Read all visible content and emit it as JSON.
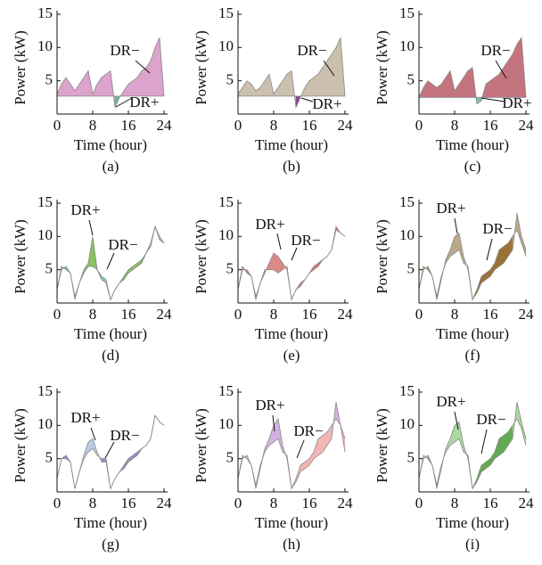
{
  "chart_data": [
    {
      "type": "area-band",
      "caption": "(a)",
      "xlabel": "Time (hour)",
      "ylabel": "Power (kW)",
      "annotations": [
        "DR−",
        "DR+"
      ],
      "x": [
        0,
        1,
        2,
        3,
        4,
        5,
        6,
        7,
        8,
        9,
        10,
        11,
        12,
        13,
        14,
        15,
        16,
        17,
        18,
        19,
        20,
        21,
        22,
        23,
        24
      ],
      "xlim": [
        0,
        24
      ],
      "xticks": [
        0,
        8,
        16,
        24
      ],
      "ylim": [
        0,
        15
      ],
      "yticks": [
        5,
        10,
        15
      ],
      "dr_plus_color": "#62b8a0",
      "dr_minus_color": "#dca3cc",
      "series": [
        {
          "color": "#8a8a8a",
          "values": [
            2.7,
            2.7,
            2.7,
            2.7,
            2.7,
            2.7,
            2.7,
            2.7,
            2.7,
            2.7,
            2.7,
            2.7,
            2.7,
            2.7,
            2.7,
            2.7,
            2.7,
            2.7,
            2.7,
            2.7,
            2.7,
            2.7,
            2.7,
            2.7,
            2.7
          ]
        },
        {
          "color": "#8a8a8a",
          "values": [
            3,
            4.5,
            5.5,
            4.5,
            3.5,
            4.5,
            5.5,
            6.5,
            3,
            4.5,
            5.5,
            6,
            6.5,
            1,
            2.5,
            3.5,
            4.5,
            5,
            5.5,
            6.5,
            7,
            8,
            10,
            11.5,
            2.7
          ]
        }
      ]
    },
    {
      "type": "area-band",
      "caption": "(b)",
      "xlabel": "Time (hour)",
      "ylabel": "Power (kW)",
      "annotations": [
        "DR−",
        "DR+"
      ],
      "x": [
        0,
        1,
        2,
        3,
        4,
        5,
        6,
        7,
        8,
        9,
        10,
        11,
        12,
        13,
        14,
        15,
        16,
        17,
        18,
        19,
        20,
        21,
        22,
        23,
        24
      ],
      "xlim": [
        0,
        24
      ],
      "xticks": [
        0,
        8,
        16,
        24
      ],
      "ylim": [
        0,
        15
      ],
      "yticks": [
        5,
        10,
        15
      ],
      "dr_plus_color": "#8b4a8c",
      "dr_minus_color": "#cbbfad",
      "series": [
        {
          "color": "#8a8a8a",
          "values": [
            2.7,
            2.7,
            2.7,
            2.7,
            2.7,
            2.7,
            2.7,
            2.7,
            2.7,
            2.7,
            2.7,
            2.7,
            2.7,
            2.7,
            2.7,
            2.7,
            2.7,
            2.7,
            2.7,
            2.7,
            2.7,
            2.7,
            2.7,
            2.7,
            2.7
          ]
        },
        {
          "color": "#8a8a8a",
          "values": [
            3,
            4,
            5,
            4.5,
            3.5,
            4,
            5,
            6,
            3,
            4,
            5,
            6,
            6.5,
            1,
            2.5,
            4,
            5,
            5.5,
            6,
            7,
            8,
            9,
            10,
            11.5,
            2.7
          ]
        }
      ]
    },
    {
      "type": "area-band",
      "caption": "(c)",
      "xlabel": "Time (hour)",
      "ylabel": "Power (kW)",
      "annotations": [
        "DR−",
        "DR+"
      ],
      "x": [
        0,
        1,
        2,
        3,
        4,
        5,
        6,
        7,
        8,
        9,
        10,
        11,
        12,
        13,
        14,
        15,
        16,
        17,
        18,
        19,
        20,
        21,
        22,
        23,
        24
      ],
      "xlim": [
        0,
        24
      ],
      "xticks": [
        0,
        8,
        16,
        24
      ],
      "ylim": [
        0,
        15
      ],
      "yticks": [
        5,
        10,
        15
      ],
      "dr_plus_color": "#7cc2b2",
      "dr_minus_color": "#c4747e",
      "series": [
        {
          "color": "#8a8a8a",
          "values": [
            2.5,
            2.5,
            2.5,
            2.5,
            2.5,
            2.5,
            2.5,
            2.5,
            2.5,
            2.5,
            2.5,
            2.5,
            2.5,
            2.5,
            2.5,
            2.5,
            2.5,
            2.5,
            2.5,
            2.5,
            2.5,
            2.5,
            2.5,
            2.5,
            2.5
          ]
        },
        {
          "color": "#8a8a8a",
          "values": [
            2.5,
            4,
            5,
            4.5,
            4,
            4.5,
            5.5,
            6.5,
            3.5,
            4.5,
            5.5,
            6.5,
            7,
            1.5,
            2,
            4.5,
            5,
            5.5,
            6,
            7,
            8,
            9,
            10.5,
            11.5,
            2.5
          ]
        }
      ]
    },
    {
      "type": "area-band",
      "caption": "(d)",
      "xlabel": "Time (hour)",
      "ylabel": "Power (kW)",
      "annotations": [
        "DR−",
        "DR+"
      ],
      "x": [
        0,
        1,
        2,
        3,
        4,
        5,
        6,
        7,
        8,
        9,
        10,
        11,
        12,
        13,
        14,
        15,
        16,
        17,
        18,
        19,
        20,
        21,
        22,
        23,
        24
      ],
      "xlim": [
        0,
        24
      ],
      "xticks": [
        0,
        8,
        16,
        24
      ],
      "ylim": [
        0,
        15
      ],
      "yticks": [
        5,
        10,
        15
      ],
      "dr_plus_color": "#82ccbb",
      "dr_minus_color": "#8cc15e",
      "series": [
        {
          "color": "#8a8a8a",
          "values": [
            2,
            5,
            5.5,
            4.5,
            1,
            3,
            4.5,
            5.5,
            5.5,
            5,
            4,
            3.5,
            0.5,
            2,
            3,
            3.5,
            4.5,
            5,
            5.5,
            6,
            7.5,
            8.5,
            11.5,
            10,
            9
          ]
        },
        {
          "color": "#8a8a8a",
          "values": [
            2,
            5.5,
            5,
            4.5,
            0.5,
            3,
            5,
            6,
            10,
            5,
            3.5,
            3,
            0.5,
            2,
            3,
            4,
            5,
            5.5,
            6,
            6.5,
            7.5,
            9,
            11.5,
            9.5,
            9
          ]
        }
      ]
    },
    {
      "type": "area-band",
      "caption": "(e)",
      "xlabel": "Time (hour)",
      "ylabel": "Power (kW)",
      "annotations": [
        "DR−",
        "DR+"
      ],
      "x": [
        0,
        1,
        2,
        3,
        4,
        5,
        6,
        7,
        8,
        9,
        10,
        11,
        12,
        13,
        14,
        15,
        16,
        17,
        18,
        19,
        20,
        21,
        22,
        23,
        24
      ],
      "xlim": [
        0,
        24
      ],
      "xticks": [
        0,
        8,
        16,
        24
      ],
      "ylim": [
        0,
        15
      ],
      "yticks": [
        5,
        10,
        15
      ],
      "dr_plus_color": "#e07272",
      "dr_minus_color": "#d98c86",
      "series": [
        {
          "color": "#8a8a8a",
          "values": [
            2,
            5,
            5,
            4,
            1,
            3,
            5,
            5,
            5,
            4.5,
            5,
            5.5,
            0.5,
            2,
            3,
            3.5,
            4.5,
            5.5,
            6,
            6.5,
            7,
            8,
            11.5,
            10.5,
            10
          ]
        },
        {
          "color": "#8a8a8a",
          "values": [
            2,
            5.5,
            4.5,
            4,
            0.5,
            3,
            4.5,
            6,
            7.5,
            7,
            6,
            5,
            0.5,
            2,
            2.5,
            3.5,
            4.5,
            5,
            5.5,
            6.5,
            7,
            8,
            11,
            10.5,
            10
          ]
        }
      ]
    },
    {
      "type": "area-band",
      "caption": "(f)",
      "xlabel": "Time (hour)",
      "ylabel": "Power (kW)",
      "annotations": [
        "DR−",
        "DR+"
      ],
      "x": [
        0,
        1,
        2,
        3,
        4,
        5,
        6,
        7,
        8,
        9,
        10,
        11,
        12,
        13,
        14,
        15,
        16,
        17,
        18,
        19,
        20,
        21,
        22,
        23,
        24
      ],
      "xlim": [
        0,
        24
      ],
      "xticks": [
        0,
        8,
        16,
        24
      ],
      "ylim": [
        0,
        15
      ],
      "yticks": [
        5,
        10,
        15
      ],
      "dr_plus_color": "#9a7238",
      "dr_minus_color": "#bba78a",
      "series": [
        {
          "color": "#8a8a8a",
          "values": [
            2,
            5,
            5.5,
            4,
            1,
            4,
            6,
            7,
            7.5,
            8,
            6,
            5.5,
            0.5,
            2,
            4,
            4.5,
            5,
            6,
            8,
            8.5,
            9,
            10,
            11,
            9,
            7
          ]
        },
        {
          "color": "#8a8a8a",
          "values": [
            2,
            5.5,
            5,
            4,
            0.5,
            3.5,
            6.5,
            8,
            10,
            10.5,
            7,
            5,
            0.5,
            1.5,
            3,
            3.5,
            4,
            5,
            5.5,
            6,
            7,
            8,
            13.5,
            10,
            8
          ]
        }
      ]
    },
    {
      "type": "area-band",
      "caption": "(g)",
      "xlabel": "Time (hour)",
      "ylabel": "Power (kW)",
      "annotations": [
        "DR−",
        "DR+"
      ],
      "x": [
        0,
        1,
        2,
        3,
        4,
        5,
        6,
        7,
        8,
        9,
        10,
        11,
        12,
        13,
        14,
        15,
        16,
        17,
        18,
        19,
        20,
        21,
        22,
        23,
        24
      ],
      "xlim": [
        0,
        24
      ],
      "xticks": [
        0,
        8,
        16,
        24
      ],
      "ylim": [
        0,
        15
      ],
      "yticks": [
        5,
        10,
        15
      ],
      "dr_plus_color": "#8c8ec8",
      "dr_minus_color": "#b9cbe2",
      "series": [
        {
          "color": "#8a8a8a",
          "values": [
            2,
            5,
            5.5,
            4.5,
            0.5,
            3,
            5,
            6,
            6.5,
            5.5,
            5,
            5,
            0.5,
            2,
            3,
            4,
            5,
            5.5,
            6,
            6.5,
            7,
            8,
            11.5,
            10.5,
            10
          ]
        },
        {
          "color": "#8a8a8a",
          "values": [
            2,
            5,
            5,
            4.5,
            0.5,
            3,
            5.5,
            7.5,
            8,
            6,
            4.5,
            4.5,
            0.5,
            2,
            3,
            3.5,
            4.5,
            5,
            5.5,
            6.5,
            7,
            8,
            11.5,
            10.5,
            10
          ]
        }
      ]
    },
    {
      "type": "area-band",
      "caption": "(h)",
      "xlabel": "Time (hour)",
      "ylabel": "Power (kW)",
      "annotations": [
        "DR−",
        "DR+"
      ],
      "x": [
        0,
        1,
        2,
        3,
        4,
        5,
        6,
        7,
        8,
        9,
        10,
        11,
        12,
        13,
        14,
        15,
        16,
        17,
        18,
        19,
        20,
        21,
        22,
        23,
        24
      ],
      "xlim": [
        0,
        24
      ],
      "xticks": [
        0,
        8,
        16,
        24
      ],
      "ylim": [
        0,
        15
      ],
      "yticks": [
        5,
        10,
        15
      ],
      "dr_plus_color": "#f2b6b4",
      "dr_minus_color": "#d2b2e0",
      "series": [
        {
          "color": "#8a8a8a",
          "values": [
            2,
            5,
            5.5,
            4,
            1,
            4,
            6,
            7,
            7.5,
            8,
            6,
            5.5,
            0.5,
            2,
            4,
            4.5,
            5,
            6,
            8,
            8.5,
            9,
            10,
            11,
            10,
            8
          ]
        },
        {
          "color": "#8a8a8a",
          "values": [
            2,
            5.5,
            5,
            4,
            0.5,
            3.5,
            6.5,
            8,
            10,
            11,
            7,
            5,
            0.5,
            1.5,
            3,
            3.5,
            4,
            5,
            5.5,
            6,
            7,
            8,
            13.5,
            10,
            6
          ]
        }
      ]
    },
    {
      "type": "area-band",
      "caption": "(i)",
      "xlabel": "Time (hour)",
      "ylabel": "Power (kW)",
      "annotations": [
        "DR−",
        "DR+"
      ],
      "x": [
        0,
        1,
        2,
        3,
        4,
        5,
        6,
        7,
        8,
        9,
        10,
        11,
        12,
        13,
        14,
        15,
        16,
        17,
        18,
        19,
        20,
        21,
        22,
        23,
        24
      ],
      "xlim": [
        0,
        24
      ],
      "xticks": [
        0,
        8,
        16,
        24
      ],
      "ylim": [
        0,
        15
      ],
      "yticks": [
        5,
        10,
        15
      ],
      "dr_plus_color": "#62aa52",
      "dr_minus_color": "#a9d8a1",
      "series": [
        {
          "color": "#8a8a8a",
          "values": [
            2,
            5,
            5.5,
            4,
            1,
            4,
            6,
            7,
            7.5,
            8,
            6,
            5.5,
            0.5,
            2,
            4,
            4.5,
            5,
            6,
            8,
            8.5,
            9,
            10,
            11,
            9.5,
            7
          ]
        },
        {
          "color": "#8a8a8a",
          "values": [
            2,
            5.5,
            5,
            4,
            0.5,
            3.5,
            6.5,
            8,
            10,
            10.5,
            7,
            5,
            0.5,
            1.5,
            3,
            3.5,
            4,
            5,
            5.5,
            6,
            7,
            8,
            13.5,
            10.5,
            8
          ]
        }
      ]
    }
  ]
}
